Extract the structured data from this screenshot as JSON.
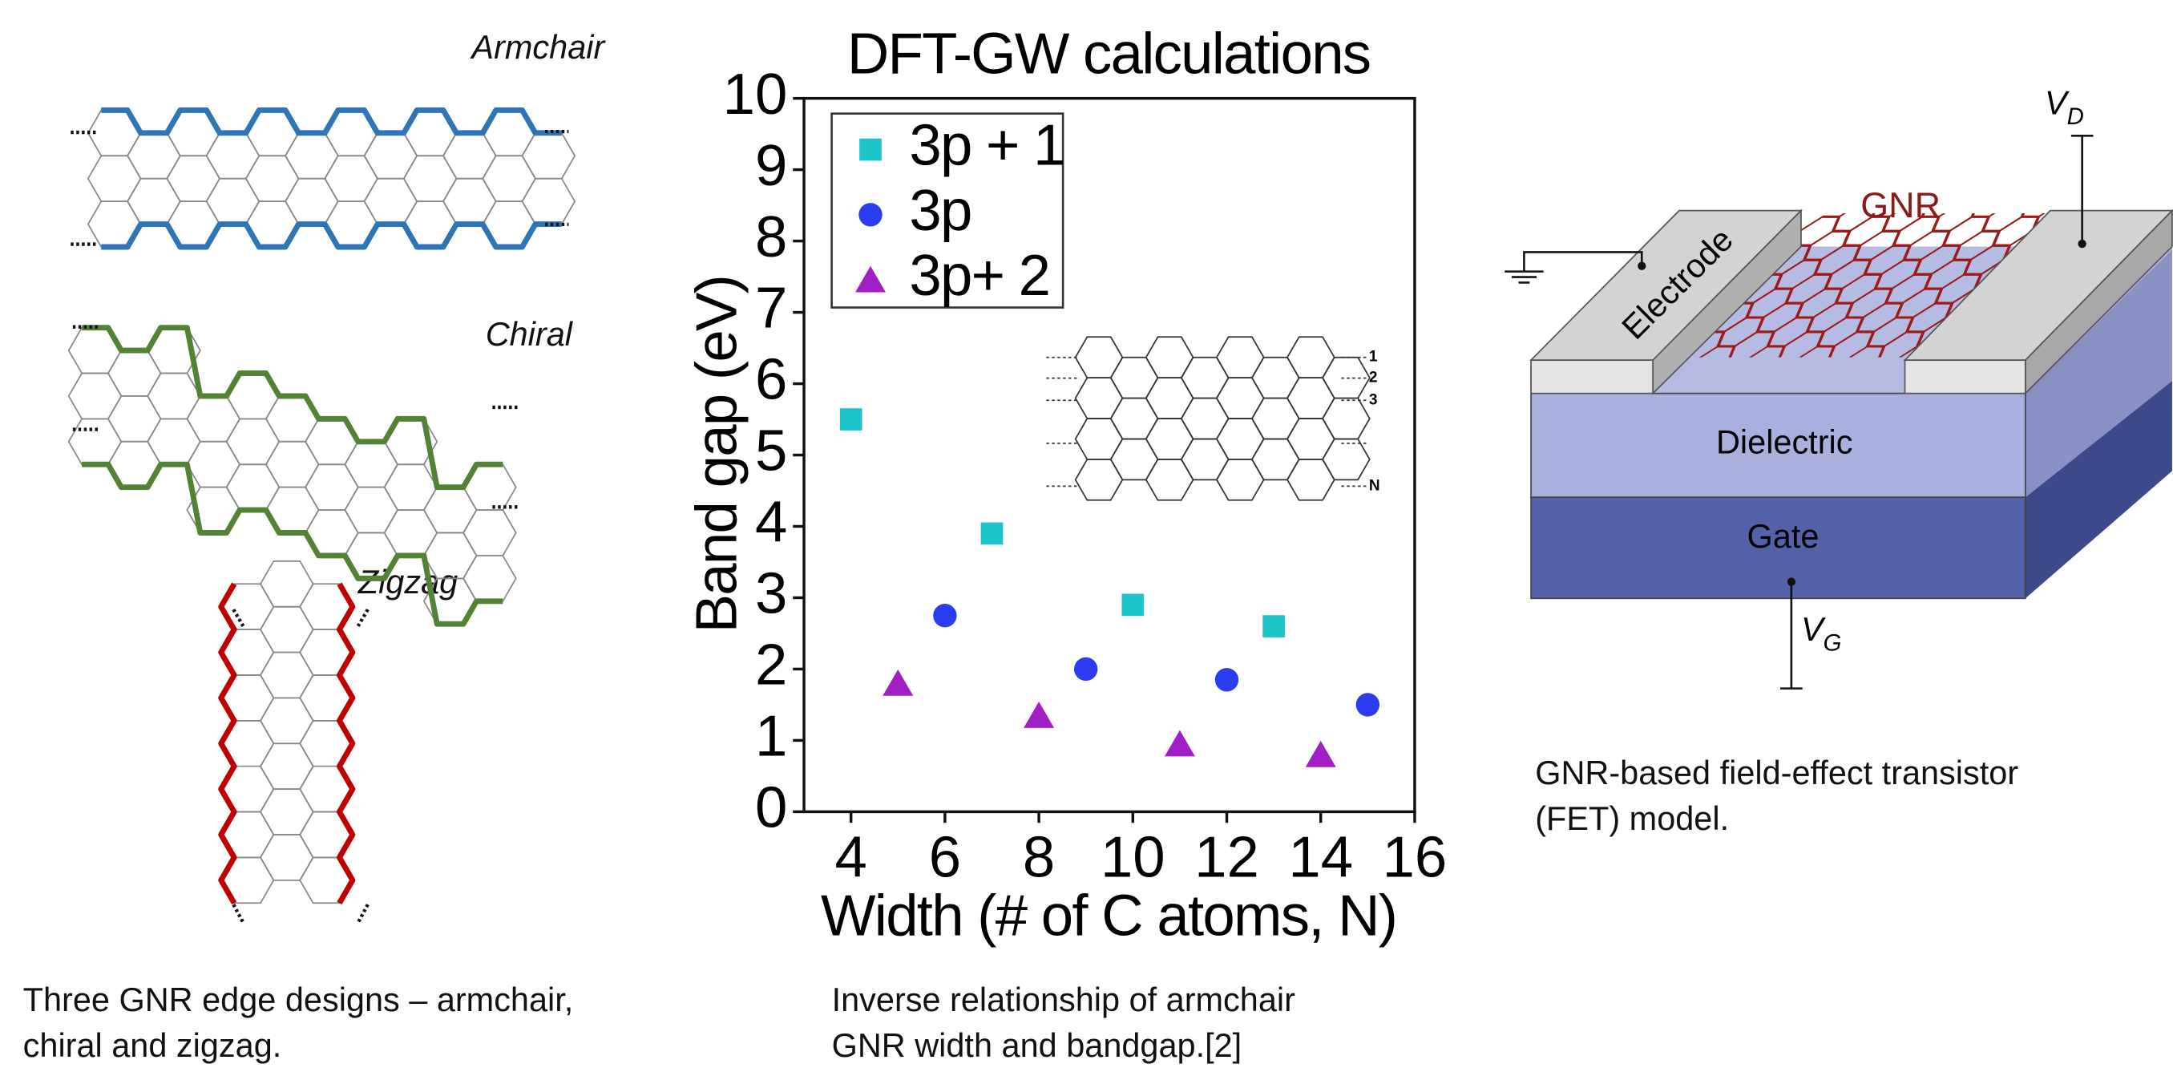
{
  "left_figure": {
    "labels": [
      "Armchair",
      "Chiral",
      "Zigzag"
    ],
    "caption": [
      "Three GNR edge designs – armchair,",
      "chiral and zigzag."
    ]
  },
  "chart_data": {
    "type": "scatter",
    "title": "DFT-GW calculations",
    "x_label": "Width (# of C atoms, N)",
    "y_label": "Band gap (eV)",
    "xlim": [
      3,
      16
    ],
    "xticks": [
      4,
      6,
      8,
      10,
      12,
      14,
      16
    ],
    "ylim": [
      0,
      10
    ],
    "yticks": [
      0,
      1,
      2,
      3,
      4,
      5,
      6,
      7,
      8,
      9,
      10
    ],
    "legend": "upper left",
    "series": [
      {
        "name": "3p + 1",
        "color": "#1cc4c8",
        "marker": "square",
        "x": [
          4,
          7,
          10,
          13
        ],
        "values": [
          5.5,
          3.9,
          2.9,
          2.6
        ]
      },
      {
        "name": "3p",
        "color": "#2b3cf0",
        "marker": "circle",
        "x": [
          6,
          9,
          12,
          15
        ],
        "values": [
          2.75,
          2.0,
          1.85,
          1.5
        ]
      },
      {
        "name": "3p+ 2",
        "color": "#a21fc8",
        "marker": "triangle",
        "x": [
          5,
          8,
          11,
          14
        ],
        "values": [
          1.8,
          1.35,
          0.95,
          0.8
        ]
      }
    ],
    "inset_labels": [
      "1",
      "2",
      "3",
      "N"
    ],
    "caption": [
      "Inverse relationship of armchair",
      "GNR width and bandgap.[2]"
    ]
  },
  "right_figure": {
    "drain": "V",
    "drain_sub": "D",
    "gnr": "GNR",
    "electrode": "Electrode",
    "dielectric": "Dielectric",
    "gate": "Gate",
    "gate_v": "V",
    "gate_sub": "G",
    "caption": [
      "GNR-based field-effect transistor",
      "(FET) model."
    ]
  }
}
